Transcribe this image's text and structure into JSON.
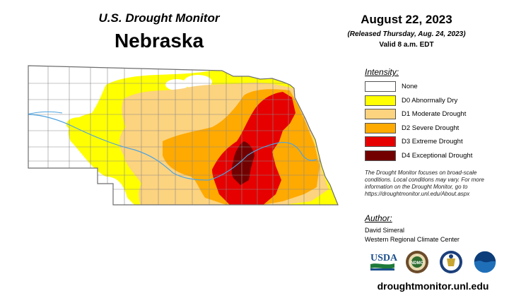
{
  "header": {
    "title": "U.S. Drought Monitor",
    "region": "Nebraska",
    "date": "August 22, 2023",
    "released": "(Released Thursday, Aug. 24, 2023)",
    "valid": "Valid 8 a.m. EDT"
  },
  "legend": {
    "title": "Intensity:",
    "items": [
      {
        "label": "None",
        "color": "#ffffff"
      },
      {
        "label": "D0 Abnormally Dry",
        "color": "#ffff00"
      },
      {
        "label": "D1 Moderate Drought",
        "color": "#fcd37f"
      },
      {
        "label": "D2 Severe Drought",
        "color": "#ffaa00"
      },
      {
        "label": "D3 Extreme Drought",
        "color": "#e60000"
      },
      {
        "label": "D4 Exceptional Drought",
        "color": "#730000"
      }
    ]
  },
  "note": "The Drought Monitor focuses on broad-scale conditions. Local conditions may vary. For more information on the Drought Monitor, go to https://droughtmonitor.unl.edu/About.aspx",
  "author": {
    "title": "Author:",
    "name": "David Simeral",
    "org": "Western Regional Climate Center"
  },
  "logos": {
    "usda": "USDA",
    "ndmc": "NDMC"
  },
  "website": "droughtmonitor.unl.edu"
}
